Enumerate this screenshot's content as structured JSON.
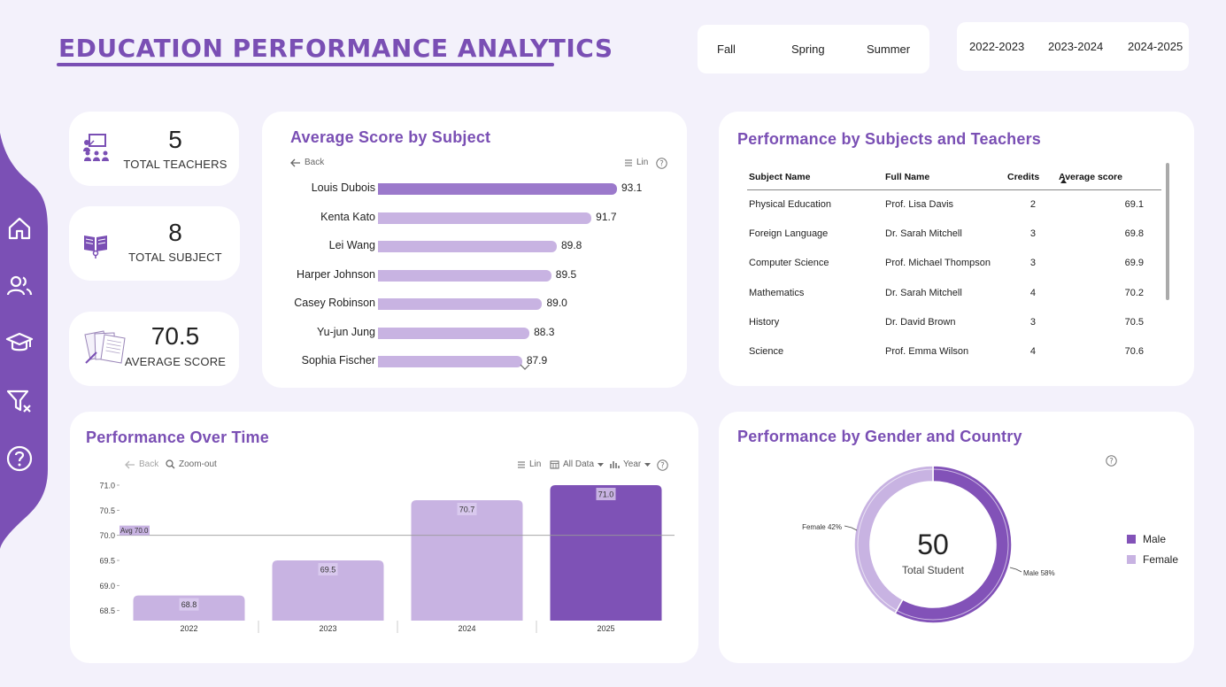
{
  "header": {
    "title": "EDUCATION PERFORMANCE ANALYTICS"
  },
  "semester_slicer": [
    "Fall",
    "Spring",
    "Summer"
  ],
  "year_slicer": [
    "2022-2023",
    "2023-2024",
    "2024-2025"
  ],
  "sidebar": [
    "home-icon",
    "users-icon",
    "graduation-cap-icon",
    "clear-filter-icon",
    "help-icon"
  ],
  "kpis": {
    "teachers": {
      "value": "5",
      "label": "TOTAL TEACHERS"
    },
    "subjects": {
      "value": "8",
      "label": "TOTAL SUBJECT"
    },
    "score": {
      "value": "70.5",
      "label": "AVERAGE SCORE"
    }
  },
  "avg_by_subject": {
    "title": "Average Score by Subject",
    "back": "Back",
    "lin": "Lin",
    "help": "?"
  },
  "teachers_table": {
    "title": "Performance by Subjects and Teachers",
    "headers": [
      "Subject Name",
      "Full Name",
      "Credits",
      "Average score"
    ],
    "rows": [
      [
        "Physical Education",
        "Prof. Lisa Davis",
        "2",
        "69.1"
      ],
      [
        "Foreign Language",
        "Dr. Sarah Mitchell",
        "3",
        "69.8"
      ],
      [
        "Computer Science",
        "Prof. Michael Thompson",
        "3",
        "69.9"
      ],
      [
        "Mathematics",
        "Dr. Sarah Mitchell",
        "4",
        "70.2"
      ],
      [
        "History",
        "Dr. David Brown",
        "3",
        "70.5"
      ],
      [
        "Science",
        "Prof. Emma Wilson",
        "4",
        "70.6"
      ]
    ]
  },
  "over_time": {
    "title": "Performance Over Time",
    "back": "Back",
    "zoom": "Zoom-out",
    "lin": "Lin",
    "all_data": "All Data",
    "year": "Year",
    "help": "?",
    "avg_label": "Avg 70.0"
  },
  "gender_country": {
    "title": "Performance by Gender and Country",
    "center_value": "50",
    "center_label": "Total Student",
    "label_female": "Female 42%",
    "label_male": "Male 58%",
    "legend": [
      "Male",
      "Female"
    ],
    "help": "?"
  },
  "colors": {
    "accent": "#7a4fb4",
    "dark": "#8252b8",
    "light": "#c8b3e2",
    "bg": "#f3f1fb"
  },
  "chart_data": [
    {
      "type": "bar",
      "orientation": "horizontal",
      "categories": [
        "Louis Dubois",
        "Kenta Kato",
        "Lei Wang",
        "Harper Johnson",
        "Casey Robinson",
        "Yu-jun Jung",
        "Sophia Fischer"
      ],
      "values": [
        93.1,
        91.7,
        89.8,
        89.5,
        89.0,
        88.3,
        87.9
      ],
      "labels": [
        "93.1",
        "91.7",
        "89.8",
        "89.5",
        "89.0",
        "88.3",
        "87.9"
      ],
      "title": "Average Score by Subject"
    },
    {
      "type": "bar",
      "categories": [
        "2022",
        "2023",
        "2024",
        "2025"
      ],
      "values": [
        68.8,
        69.5,
        70.7,
        71.0
      ],
      "labels": [
        "68.8",
        "69.5",
        "70.7",
        "71.0"
      ],
      "yticks": [
        "71.0",
        "70.5",
        "70.0",
        "69.5",
        "69.0",
        "68.5"
      ],
      "ylim": [
        68.3,
        71.0
      ],
      "reference_line": 70.0,
      "title": "Performance Over Time"
    },
    {
      "type": "pie",
      "categories": [
        "Male",
        "Female"
      ],
      "values": [
        58,
        42
      ],
      "title": "Performance by Gender and Country"
    }
  ]
}
